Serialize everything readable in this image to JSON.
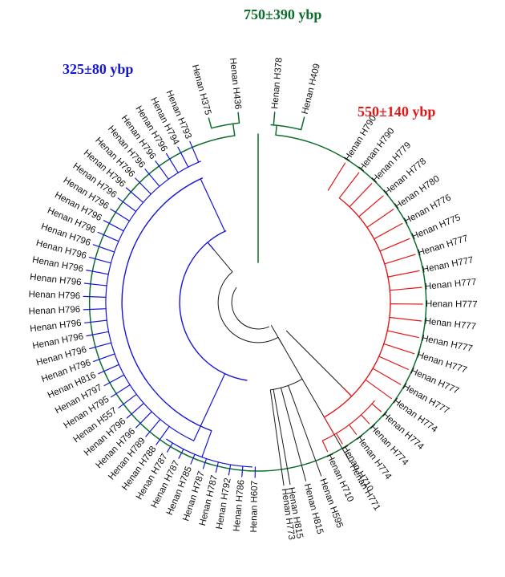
{
  "figure": {
    "type": "circular-phylogenetic-tree"
  },
  "colors": {
    "blue": "#1515d8",
    "green": "#0c6e2a",
    "red": "#e01818",
    "black": "#1a1a1a"
  },
  "clades": [
    {
      "id": "blue",
      "age_label": "325±80 ybp",
      "color": "#1515d8"
    },
    {
      "id": "green",
      "age_label": "750±390 ybp",
      "color": "#0c6e2a"
    },
    {
      "id": "red",
      "age_label": "550±140 ybp",
      "color": "#e01818"
    }
  ],
  "leaves": {
    "blue": [
      "Henan H793",
      "Henan H794",
      "Henan H796",
      "Henan H796",
      "Henan H796",
      "Henan H796",
      "Henan H796",
      "Henan H796",
      "Henan H796",
      "Henan H796",
      "Henan H796",
      "Henan H796",
      "Henan H796",
      "Henan H796",
      "Henan H796",
      "Henan H796",
      "Henan H796",
      "Henan H796",
      "Henan H796",
      "Henan H796",
      "Henan H796",
      "Henan H816",
      "Henan H797",
      "Henan H795",
      "Henan H557",
      "Henan H796",
      "Henan H796",
      "Henan H789",
      "Henan H788",
      "Henan H787",
      "Henan H787",
      "Henan H785",
      "Henan H787",
      "Henan H787",
      "Henan H792",
      "Henan H786",
      "Henan H607"
    ],
    "black": [
      "Henan H773",
      "Henan H815",
      "Henan H815",
      "Henan H595",
      "Henan H771"
    ],
    "red": [
      "Henan H710",
      "Henan H710",
      "Henan H774",
      "Henan H774",
      "Henan H774",
      "Henan H774",
      "Henan H777",
      "Henan H777",
      "Henan H777",
      "Henan H777",
      "Henan H777",
      "Henan H777",
      "Henan H777",
      "Henan H777",
      "Henan H777",
      "Henan H775",
      "Henan H776",
      "Henan H780",
      "Henan H778",
      "Henan H779",
      "Henan H790",
      "Henan H790"
    ],
    "green": [
      "Henan H375",
      "Henan H436",
      "Henan H378",
      "Henan H409"
    ]
  }
}
